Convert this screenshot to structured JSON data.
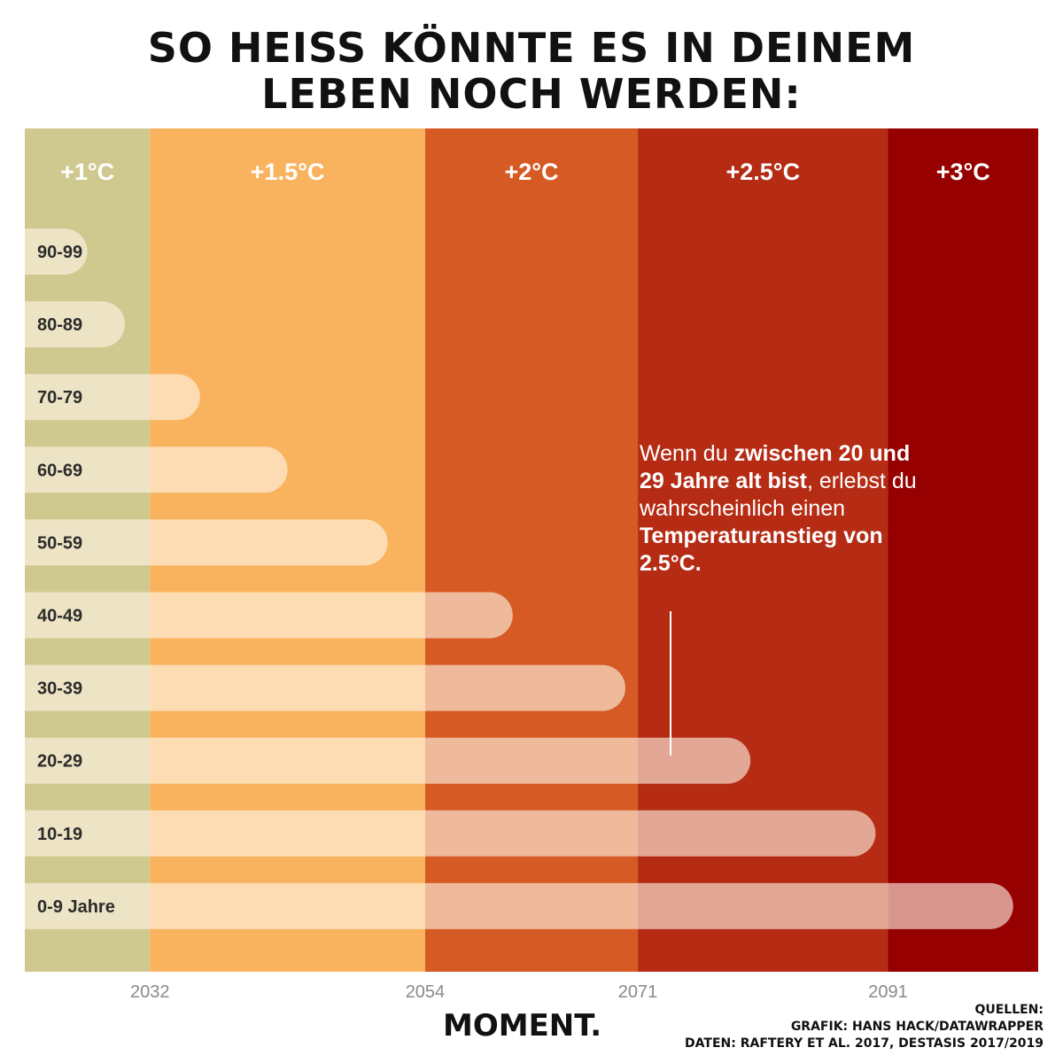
{
  "title": {
    "line1": "SO HEISS KÖNNTE ES IN DEINEM",
    "line2": "LEBEN NOCH WERDEN:"
  },
  "chart_data": {
    "type": "bar",
    "orientation": "horizontal",
    "x_range": [
      2022,
      2103
    ],
    "x_ticks": [
      2032,
      2054,
      2071,
      2091
    ],
    "bands": [
      {
        "label": "+1°C",
        "from": 2022,
        "to": 2032,
        "color": "#cfc98f"
      },
      {
        "label": "+1.5°C",
        "from": 2032,
        "to": 2054,
        "color": "#f9b35f"
      },
      {
        "label": "+2°C",
        "from": 2054,
        "to": 2071,
        "color": "#d65a23"
      },
      {
        "label": "+2.5°C",
        "from": 2071,
        "to": 2091,
        "color": "#b52b14"
      },
      {
        "label": "+3°C",
        "from": 2091,
        "to": 2103,
        "color": "#960000"
      }
    ],
    "categories": [
      "90-99",
      "80-89",
      "70-79",
      "60-69",
      "50-59",
      "40-49",
      "30-39",
      "20-29",
      "10-19",
      "0-9 Jahre"
    ],
    "values": [
      2027,
      2030,
      2036,
      2043,
      2051,
      2061,
      2070,
      2080,
      2090,
      2101
    ],
    "bar_color": "#fff3e6",
    "annotation_category": "20-29"
  },
  "annotation": {
    "p1": "Wenn du ",
    "b1": "zwischen 20 und 29 Jahre alt bist",
    "p2": ", erlebst du wahrscheinlich einen ",
    "b2": "Temperaturanstieg von 2.5°C."
  },
  "logo": "MOMENT.",
  "sources": {
    "line1": "QUELLEN:",
    "line2": "GRAFIK: HANS HACK/DATAWRAPPER",
    "line3": "DATEN: RAFTERY ET AL. 2017, DESTASIS 2017/2019"
  }
}
